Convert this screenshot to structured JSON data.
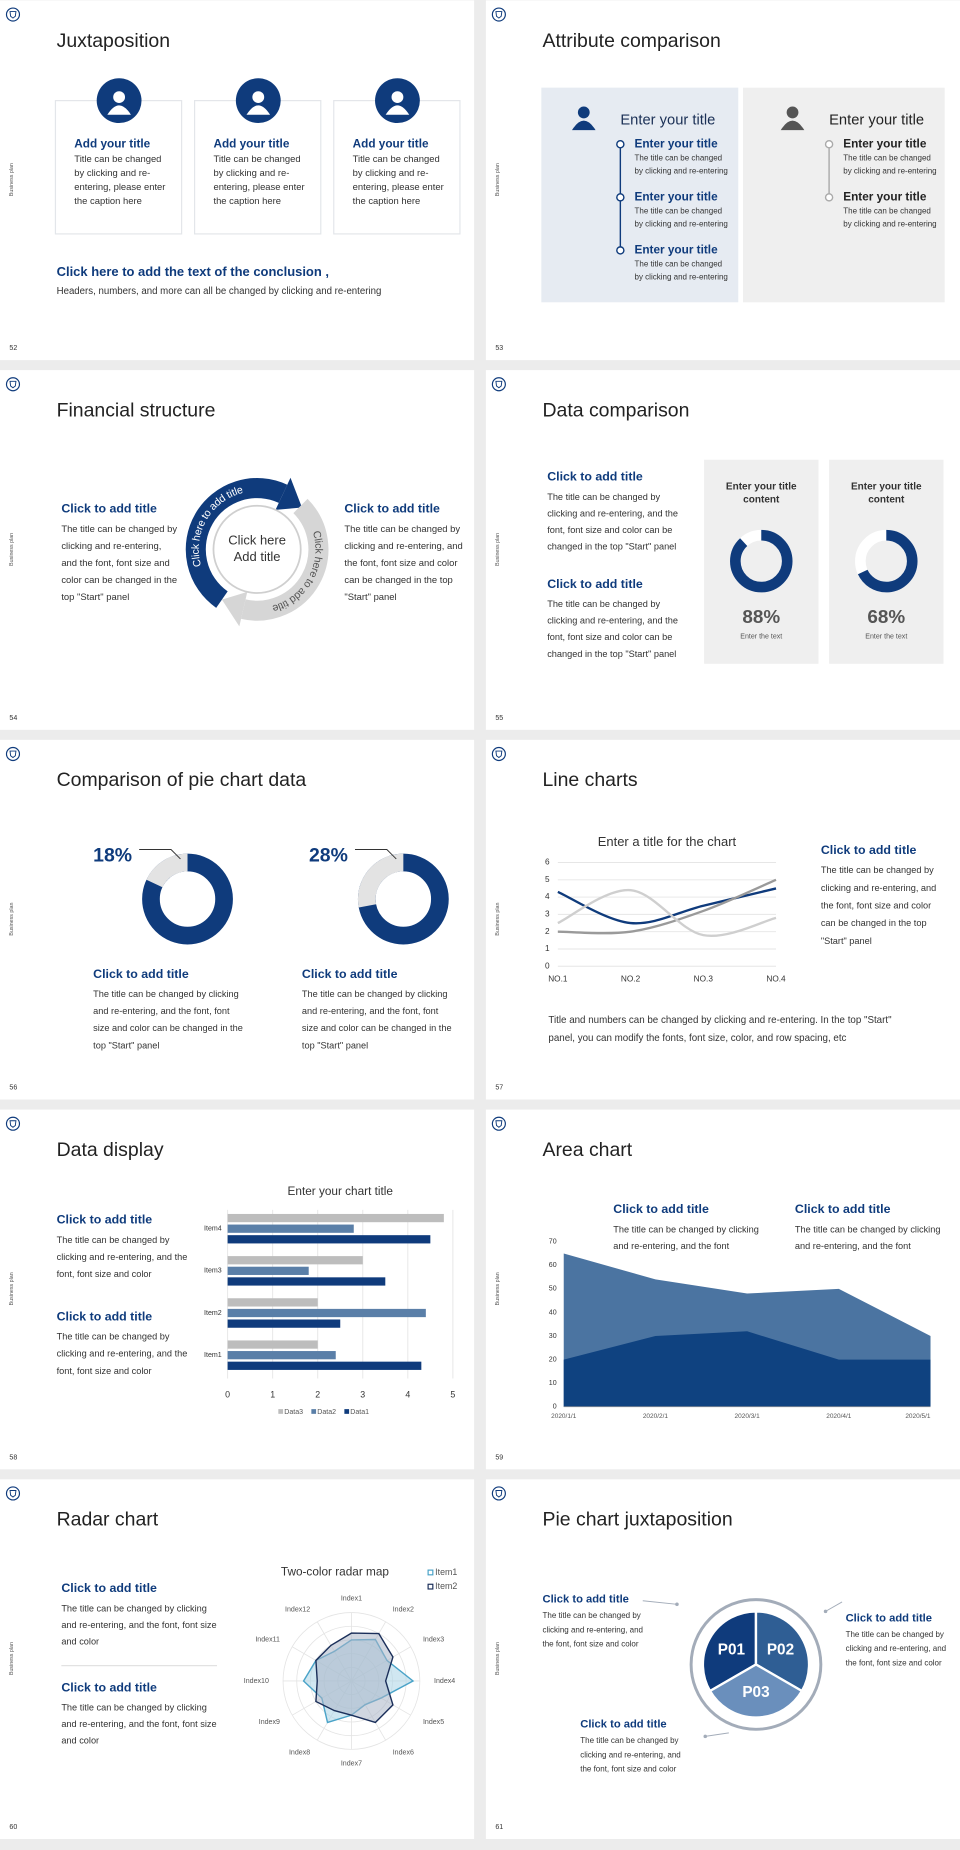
{
  "side_label": "Business plan",
  "slides": [
    {
      "number": 52,
      "title": "Juxtaposition",
      "cards": [
        {
          "title": "Add your title",
          "lines": [
            "Title can be changed",
            "by clicking and re-",
            "entering, please enter",
            "the caption here"
          ]
        },
        {
          "title": "Add your title",
          "lines": [
            "Title can be changed",
            "by clicking and re-",
            "entering, please enter",
            "the caption here"
          ]
        },
        {
          "title": "Add your title",
          "lines": [
            "Title can be changed",
            "by clicking and re-",
            "entering, please enter",
            "the caption here"
          ]
        }
      ],
      "conclusion": {
        "title": "Click here to add the text of the conclusion ,",
        "text": "Headers, numbers, and more can all be changed by clicking and re-entering"
      }
    },
    {
      "number": 53,
      "title": "Attribute comparison",
      "panels": [
        {
          "title": "Enter your title",
          "items": [
            {
              "title": "Enter your title",
              "lines": [
                "The title can be changed",
                "by clicking and re-entering"
              ]
            },
            {
              "title": "Enter your title",
              "lines": [
                "The title can be changed",
                "by clicking and re-entering"
              ]
            },
            {
              "title": "Enter your title",
              "lines": [
                "The title can be changed",
                "by clicking and re-entering"
              ]
            }
          ]
        },
        {
          "title": "Enter your title",
          "items": [
            {
              "title": "Enter your title",
              "lines": [
                "The title can be changed",
                "by clicking and re-entering"
              ]
            },
            {
              "title": "Enter your title",
              "lines": [
                "The title can be changed",
                "by clicking and re-entering"
              ]
            }
          ]
        }
      ]
    },
    {
      "number": 54,
      "title": "Financial structure",
      "left": {
        "title": "Click to add title",
        "lines": [
          "The title can be changed by",
          "clicking and re-entering,",
          "and the font, font size and",
          "color can be changed in the",
          "top \"Start\" panel"
        ]
      },
      "right": {
        "title": "Click to add title",
        "lines": [
          "The title can be changed by",
          "clicking and re-entering, and",
          "the font, font size and color",
          "can be changed in the top",
          "\"Start\" panel"
        ]
      },
      "center": [
        "Click here",
        "Add title"
      ],
      "arc_labels": [
        "Click here to add title",
        "Click here to add title"
      ]
    },
    {
      "number": 55,
      "title": "Data comparison",
      "blocks": [
        {
          "title": "Click to add title",
          "lines": [
            "The title can be changed by",
            "clicking and re-entering, and the",
            "font, font size and color can be",
            "changed in the top \"Start\" panel"
          ]
        },
        {
          "title": "Click to add title",
          "lines": [
            "The title can be changed by",
            "clicking and re-entering, and the",
            "font, font size and color can be",
            "changed in the top \"Start\" panel"
          ]
        }
      ],
      "gauges": [
        {
          "title": [
            "Enter your title",
            "content"
          ],
          "value": 88,
          "value_label": "88%",
          "caption": "Enter the text"
        },
        {
          "title": [
            "Enter your title",
            "content"
          ],
          "value": 68,
          "value_label": "68%",
          "caption": "Enter the text"
        }
      ]
    },
    {
      "number": 56,
      "title": "Comparison of pie chart data",
      "pies": [
        {
          "value": 18,
          "value_label": "18%",
          "title": "Click to add title",
          "lines": [
            "The title can be changed by clicking",
            "and re-entering, and the font, font",
            "size and color can be changed in the",
            "top \"Start\" panel"
          ]
        },
        {
          "value": 28,
          "value_label": "28%",
          "title": "Click to add title",
          "lines": [
            "The title can be changed by clicking",
            "and re-entering, and the font, font",
            "size and color can be changed in the",
            "top \"Start\" panel"
          ]
        }
      ]
    },
    {
      "number": 57,
      "title": "Line charts",
      "chart_data": {
        "type": "line",
        "title": "Enter a title for the chart",
        "categories": [
          "NO.1",
          "NO.2",
          "NO.3",
          "NO.4"
        ],
        "series": [
          {
            "color": "#0f3b7c",
            "values": [
              4.3,
              2.5,
              3.5,
              4.5
            ]
          },
          {
            "color": "#9a9a9a",
            "values": [
              2,
              2,
              3.2,
              5
            ]
          },
          {
            "color": "#cfcfcf",
            "values": [
              2.5,
              4.4,
              1.8,
              2.8
            ]
          }
        ],
        "ylim": [
          0,
          6
        ],
        "yticks": [
          0,
          1,
          2,
          3,
          4,
          5,
          6
        ],
        "grid": true
      },
      "side": {
        "title": "Click to add title",
        "lines": [
          "The title can be changed by",
          "clicking and re-entering, and",
          "the font, font size and color",
          "can be changed in the top",
          "\"Start\" panel"
        ]
      },
      "note": [
        "Title and numbers can be changed by clicking and re-entering. In the top \"Start\"",
        "panel, you can modify the fonts, font size, color, and row spacing, etc"
      ]
    },
    {
      "number": 58,
      "title": "Data display",
      "chart_data": {
        "type": "hbar",
        "title": "Enter your chart title",
        "categories": [
          "Item1",
          "Item2",
          "Item3",
          "Item4"
        ],
        "series": [
          {
            "name": "Data3",
            "color": "#bdbdbd",
            "values": [
              2,
              2,
              3,
              4.8
            ]
          },
          {
            "name": "Data2",
            "color": "#5a7fa8",
            "values": [
              2.4,
              4.4,
              1.8,
              2.8
            ]
          },
          {
            "name": "Data1",
            "color": "#0f3b7c",
            "values": [
              4.3,
              2.5,
              3.5,
              4.5
            ]
          }
        ],
        "xlim": [
          0,
          5
        ],
        "xticks": [
          0,
          1,
          2,
          3,
          4,
          5
        ],
        "grid": true
      },
      "blocks": [
        {
          "title": "Click to add title",
          "lines": [
            "The title can be changed by",
            "clicking and re-entering, and the",
            "font, font size and color"
          ]
        },
        {
          "title": "Click to add title",
          "lines": [
            "The title can be changed by",
            "clicking and re-entering, and the",
            "font, font size and color"
          ]
        }
      ]
    },
    {
      "number": 59,
      "title": "Area chart",
      "chart_data": {
        "type": "area",
        "categories": [
          "2020/1/1",
          "2020/2/1",
          "2020/3/1",
          "2020/4/1",
          "2020/5/1"
        ],
        "series": [
          {
            "color": "#4b74a1",
            "values": [
              65,
              54,
              48,
              50,
              30
            ]
          },
          {
            "color": "#0f4280",
            "values": [
              20,
              30,
              32,
              20,
              20
            ]
          }
        ],
        "ylim": [
          0,
          70
        ],
        "yticks": [
          0,
          10,
          20,
          30,
          40,
          50,
          60,
          70
        ],
        "grid": false
      },
      "blocks": [
        {
          "title": "Click to add title",
          "lines": [
            "The title can be changed by clicking",
            "and re-entering, and the font"
          ]
        },
        {
          "title": "Click to add title",
          "lines": [
            "The title can be changed by clicking",
            "and re-entering, and the font"
          ]
        }
      ]
    },
    {
      "number": 60,
      "title": "Radar chart",
      "chart_data": {
        "type": "radar",
        "title": "Two-color radar map",
        "categories": [
          "Index1",
          "Index2",
          "Index3",
          "Index4",
          "Index5",
          "Index6",
          "Index7",
          "Index8",
          "Index9",
          "Index10",
          "Index11",
          "Index12"
        ],
        "series": [
          {
            "name": "Item1",
            "color": "#4aa3c8",
            "values": [
              3,
              3.5,
              3,
              4.5,
              2.5,
              2,
              2.5,
              3.5,
              2.5,
              3.5,
              3,
              2.5
            ]
          },
          {
            "name": "Item2",
            "color": "#1b2f5a",
            "values": [
              3.5,
              4,
              3.5,
              2.5,
              3.5,
              3.5,
              2.5,
              2.5,
              3,
              2.5,
              3,
              3
            ]
          }
        ],
        "rlim": [
          0,
          5
        ]
      },
      "blocks": [
        {
          "title": "Click to add title",
          "lines": [
            "The title can be changed by clicking",
            "and re-entering, and the font, font size",
            "and color"
          ]
        },
        {
          "title": "Click to add title",
          "lines": [
            "The title can be changed by clicking",
            "and re-entering, and the font, font size",
            "and color"
          ]
        }
      ]
    },
    {
      "number": 61,
      "title": "Pie chart juxtaposition",
      "segments": [
        "P01",
        "P02",
        "P03"
      ],
      "blocks": [
        {
          "title": "Click to add title",
          "lines": [
            "The title can be changed by",
            "clicking and re-entering, and",
            "the font, font size and color"
          ]
        },
        {
          "title": "Click to add title",
          "lines": [
            "The title can be changed by",
            "clicking and re-entering, and",
            "the font, font size and color"
          ]
        },
        {
          "title": "Click to add title",
          "lines": [
            "The title can be changed by",
            "clicking and re-entering, and",
            "the font, font size and color"
          ]
        }
      ]
    }
  ]
}
